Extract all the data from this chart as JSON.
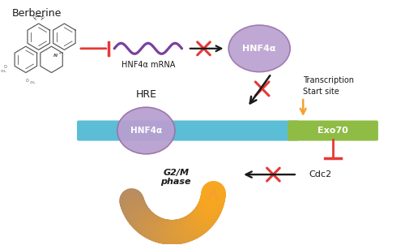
{
  "bg_color": "#ffffff",
  "berberine_label": "Berberine",
  "hnf4a_mrna_label": "HNF4α mRNA",
  "hnf4a_ball_label": "HNF4α",
  "hre_label": "HRE",
  "hnf4a_bar_label": "HNF4α",
  "exo70_label": "Exo70",
  "transcription_label": "Transcription\nStart site",
  "cdc2_label": "Cdc2",
  "g2m_label": "G2/M\nphase",
  "purple_color": "#9b72aa",
  "purple_light": "#b8a0d0",
  "teal_color": "#5bbdd6",
  "green_color": "#8fbc45",
  "orange_color": "#f5a030",
  "orange_dark": "#c8855a",
  "red_color": "#e53935",
  "black_color": "#1a1a1a",
  "wave_color": "#7b3fa0",
  "mol_color": "#555555"
}
